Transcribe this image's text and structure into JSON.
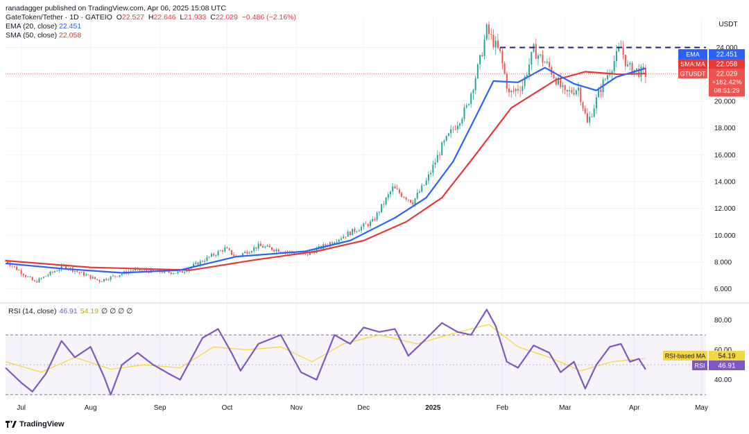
{
  "publisher_line": "ranadagger published on TradingView.com, Apr 06, 2025 15:08 UTC",
  "symbol_line": {
    "name": "GateToken/Tether · 1D · GATEIO",
    "o_label": "O",
    "o": "22.527",
    "h_label": "H",
    "h": "22.646",
    "l_label": "L",
    "l": "21.933",
    "c_label": "C",
    "c": "22.029",
    "change": "−0.486 (−2.16%)"
  },
  "ema_line": {
    "label": "EMA (20, close)",
    "value": "22.451"
  },
  "sma_line": {
    "label": "SMA (50, close)",
    "value": "22.058"
  },
  "rsi_line": {
    "label": "RSI (14, close)",
    "value": "46.91",
    "ma_value": "54.19",
    "extras": "∅ ∅ ∅ ∅"
  },
  "currency": "USDT",
  "logo_text": "TradingView",
  "colors": {
    "up": "#26a69a",
    "down": "#ef5350",
    "ema": "#2962ff",
    "sma": "#e53935",
    "rsi": "#7e57c2",
    "rsi_ma": "#f5d742",
    "resistance": "#1a237e"
  },
  "chart_data": [
    {
      "type": "candlestick",
      "title": "GateToken/Tether · 1D · GATEIO",
      "ylabel": "USDT",
      "x_ticks": [
        "Jul",
        "Aug",
        "Sep",
        "Oct",
        "Nov",
        "Dec",
        "2025",
        "Feb",
        "Mar",
        "Apr",
        "May"
      ],
      "y_ticks": [
        "6.000",
        "8.000",
        "10.000",
        "12.000",
        "14.000",
        "16.000",
        "18.000",
        "20.000",
        "24.000"
      ],
      "ylim": [
        5,
        26.2
      ],
      "grid": true,
      "price_labels": [
        {
          "name": "EMA",
          "value": "22.451"
        },
        {
          "name": "SMA:MA",
          "value": "22.058"
        },
        {
          "name": "GTUSDT",
          "value": "22.029",
          "change": "+182.42%",
          "countdown": "08:51:29"
        }
      ],
      "annotations": [
        {
          "type": "horizontal-line",
          "value": 24.0,
          "label": "24.000",
          "start": "2025-01-31"
        }
      ],
      "anchors": [
        {
          "date": "2024-06-24",
          "price": 8.1
        },
        {
          "date": "2024-07-07",
          "price": 6.5
        },
        {
          "date": "2024-07-20",
          "price": 7.7
        },
        {
          "date": "2024-08-05",
          "price": 6.6
        },
        {
          "date": "2024-08-20",
          "price": 7.4
        },
        {
          "date": "2024-09-10",
          "price": 7.2
        },
        {
          "date": "2024-09-30",
          "price": 9.0
        },
        {
          "date": "2024-10-05",
          "price": 8.4
        },
        {
          "date": "2024-10-15",
          "price": 9.2
        },
        {
          "date": "2024-11-05",
          "price": 8.5
        },
        {
          "date": "2024-11-25",
          "price": 10.2
        },
        {
          "date": "2024-12-05",
          "price": 11.0
        },
        {
          "date": "2024-12-14",
          "price": 13.5
        },
        {
          "date": "2024-12-23",
          "price": 12.5
        },
        {
          "date": "2024-12-29",
          "price": 14.0
        },
        {
          "date": "2025-01-05",
          "price": 16.6
        },
        {
          "date": "2025-01-16",
          "price": 19.5
        },
        {
          "date": "2025-01-22",
          "price": 23.0
        },
        {
          "date": "2025-01-25",
          "price": 25.3
        },
        {
          "date": "2025-01-31",
          "price": 23.5
        },
        {
          "date": "2025-02-04",
          "price": 20.5
        },
        {
          "date": "2025-02-10",
          "price": 21.2
        },
        {
          "date": "2025-02-15",
          "price": 23.8
        },
        {
          "date": "2025-02-22",
          "price": 22.5
        },
        {
          "date": "2025-03-01",
          "price": 20.5
        },
        {
          "date": "2025-03-07",
          "price": 21.0
        },
        {
          "date": "2025-03-11",
          "price": 18.3
        },
        {
          "date": "2025-03-17",
          "price": 21.0
        },
        {
          "date": "2025-03-26",
          "price": 24.0
        },
        {
          "date": "2025-03-29",
          "price": 22.5
        },
        {
          "date": "2025-04-06",
          "price": 22.03
        }
      ],
      "series": [
        {
          "name": "EMA (20, close)",
          "kind": "line",
          "points": [
            [
              "2024-06-24",
              7.9
            ],
            [
              "2024-07-20",
              7.5
            ],
            [
              "2024-08-15",
              7.2
            ],
            [
              "2024-09-10",
              7.4
            ],
            [
              "2024-10-05",
              8.4
            ],
            [
              "2024-11-05",
              8.8
            ],
            [
              "2024-11-25",
              9.6
            ],
            [
              "2024-12-15",
              11.3
            ],
            [
              "2024-12-29",
              12.8
            ],
            [
              "2025-01-10",
              15.5
            ],
            [
              "2025-01-20",
              18.8
            ],
            [
              "2025-01-28",
              21.5
            ],
            [
              "2025-02-08",
              21.4
            ],
            [
              "2025-02-20",
              22.5
            ],
            [
              "2025-03-05",
              21.3
            ],
            [
              "2025-03-15",
              20.8
            ],
            [
              "2025-03-24",
              21.8
            ],
            [
              "2025-04-06",
              22.45
            ]
          ]
        },
        {
          "name": "SMA (50, close)",
          "kind": "line",
          "points": [
            [
              "2024-06-24",
              8.1
            ],
            [
              "2024-08-01",
              7.6
            ],
            [
              "2024-09-15",
              7.4
            ],
            [
              "2024-10-15",
              8.2
            ],
            [
              "2024-11-10",
              8.8
            ],
            [
              "2024-12-01",
              9.6
            ],
            [
              "2024-12-20",
              11.0
            ],
            [
              "2025-01-05",
              12.8
            ],
            [
              "2025-01-20",
              16.0
            ],
            [
              "2025-02-05",
              19.5
            ],
            [
              "2025-02-25",
              21.6
            ],
            [
              "2025-03-10",
              22.2
            ],
            [
              "2025-03-25",
              22.0
            ],
            [
              "2025-04-06",
              22.06
            ]
          ]
        }
      ]
    },
    {
      "type": "line",
      "title": "RSI (14, close)",
      "ylim": [
        25,
        90
      ],
      "y_ticks": [
        "40.00",
        "60.00",
        "80.00"
      ],
      "bands": {
        "upper": 70,
        "middle": 50,
        "lower": 30
      },
      "price_labels": [
        {
          "name": "RSI-based MA",
          "value": "54.19"
        },
        {
          "name": "RSI",
          "value": "46.91"
        }
      ],
      "series": [
        {
          "name": "RSI",
          "points": [
            [
              "2024-06-24",
              48
            ],
            [
              "2024-07-01",
              38
            ],
            [
              "2024-07-06",
              32
            ],
            [
              "2024-07-12",
              44
            ],
            [
              "2024-07-19",
              66
            ],
            [
              "2024-07-25",
              55
            ],
            [
              "2024-08-01",
              62
            ],
            [
              "2024-08-07",
              42
            ],
            [
              "2024-08-10",
              30
            ],
            [
              "2024-08-15",
              50
            ],
            [
              "2024-08-22",
              58
            ],
            [
              "2024-08-29",
              50
            ],
            [
              "2024-09-05",
              44
            ],
            [
              "2024-09-10",
              40
            ],
            [
              "2024-09-20",
              68
            ],
            [
              "2024-09-27",
              74
            ],
            [
              "2024-10-03",
              58
            ],
            [
              "2024-10-07",
              46
            ],
            [
              "2024-10-15",
              64
            ],
            [
              "2024-10-25",
              70
            ],
            [
              "2024-11-03",
              45
            ],
            [
              "2024-11-10",
              40
            ],
            [
              "2024-11-18",
              70
            ],
            [
              "2024-11-25",
              64
            ],
            [
              "2024-12-01",
              75
            ],
            [
              "2024-12-08",
              72
            ],
            [
              "2024-12-15",
              74
            ],
            [
              "2024-12-21",
              56
            ],
            [
              "2024-12-28",
              66
            ],
            [
              "2025-01-05",
              78
            ],
            [
              "2025-01-12",
              72
            ],
            [
              "2025-01-18",
              70
            ],
            [
              "2025-01-25",
              87
            ],
            [
              "2025-01-29",
              76
            ],
            [
              "2025-02-03",
              52
            ],
            [
              "2025-02-08",
              48
            ],
            [
              "2025-02-15",
              63
            ],
            [
              "2025-02-22",
              58
            ],
            [
              "2025-02-27",
              45
            ],
            [
              "2025-03-05",
              52
            ],
            [
              "2025-03-10",
              34
            ],
            [
              "2025-03-15",
              50
            ],
            [
              "2025-03-21",
              62
            ],
            [
              "2025-03-26",
              64
            ],
            [
              "2025-03-30",
              52
            ],
            [
              "2025-04-03",
              54
            ],
            [
              "2025-04-06",
              46.91
            ]
          ]
        },
        {
          "name": "RSI-based MA",
          "points": [
            [
              "2024-06-24",
              52
            ],
            [
              "2024-07-10",
              45
            ],
            [
              "2024-07-25",
              55
            ],
            [
              "2024-08-10",
              47
            ],
            [
              "2024-08-25",
              50
            ],
            [
              "2024-09-10",
              48
            ],
            [
              "2024-09-25",
              62
            ],
            [
              "2024-10-10",
              60
            ],
            [
              "2024-10-25",
              62
            ],
            [
              "2024-11-08",
              52
            ],
            [
              "2024-11-22",
              64
            ],
            [
              "2024-12-08",
              70
            ],
            [
              "2024-12-25",
              64
            ],
            [
              "2025-01-10",
              71
            ],
            [
              "2025-01-26",
              77
            ],
            [
              "2025-02-08",
              62
            ],
            [
              "2025-02-22",
              55
            ],
            [
              "2025-03-08",
              46
            ],
            [
              "2025-03-22",
              52
            ],
            [
              "2025-04-06",
              54.19
            ]
          ]
        }
      ]
    }
  ]
}
